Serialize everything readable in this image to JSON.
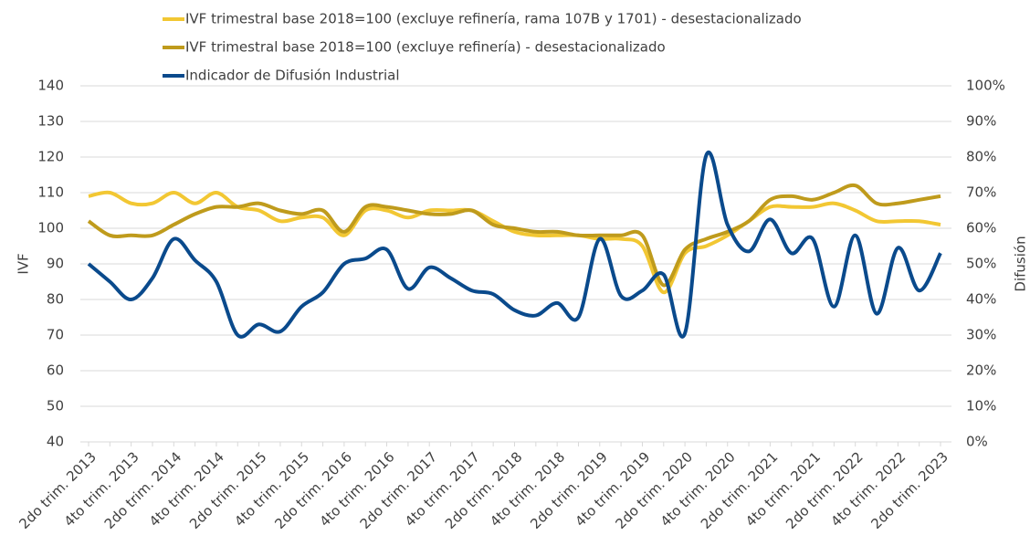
{
  "chart_data": {
    "type": "line",
    "categories": [
      "2do trim. 2013",
      null,
      "4to trim. 2013",
      null,
      "2do trim. 2014",
      null,
      "4to trim. 2014",
      null,
      "2do trim. 2015",
      null,
      "4to trim. 2015",
      null,
      "2do trim. 2016",
      null,
      "4to trim. 2016",
      null,
      "2do trim. 2017",
      null,
      "4to trim. 2017",
      null,
      "2do trim. 2018",
      null,
      "4to trim. 2018",
      null,
      "2do trim. 2019",
      null,
      "4to trim. 2019",
      null,
      "2do trim. 2020",
      null,
      "4to trim. 2020",
      null,
      "2do trim. 2021",
      null,
      "4to trim. 2021",
      null,
      "2do trim. 2022",
      null,
      "4to trim. 2022",
      null,
      "2do trim. 2023"
    ],
    "series": [
      {
        "name": "IVF trimestral base 2018=100 (excluye refinería, rama 107B y 1701) - desestacionalizado",
        "color": "#f2c733",
        "values": [
          109,
          110,
          107,
          107,
          110,
          107,
          110,
          106,
          105,
          102,
          103,
          103,
          98,
          105,
          105,
          103,
          105,
          105,
          105,
          102,
          99,
          98,
          98,
          98,
          97,
          97,
          95,
          82,
          93,
          95,
          98,
          102,
          106,
          106,
          106,
          107,
          105,
          102,
          102,
          102,
          101
        ]
      },
      {
        "name": "IVF trimestral base 2018=100 (excluye refinería) - desestacionalizado",
        "color": "#bf9b1c",
        "values": [
          102,
          98,
          98,
          98,
          101,
          104,
          106,
          106,
          107,
          105,
          104,
          105,
          99,
          106,
          106,
          105,
          104,
          104,
          105,
          101,
          100,
          99,
          99,
          98,
          98,
          98,
          98,
          84,
          94,
          97,
          99,
          102,
          108,
          109,
          108,
          110,
          112,
          107,
          107,
          108,
          109
        ]
      },
      {
        "name": "Indicador de Difusión Industrial",
        "color": "#0a4a8c",
        "axis": "y2",
        "values": [
          50,
          45,
          40,
          46,
          57,
          51,
          45,
          30,
          33,
          31,
          38,
          42,
          50,
          51.5,
          54,
          43,
          49,
          46,
          42.5,
          41.5,
          37,
          35.5,
          39,
          35,
          57,
          41,
          42.5,
          47,
          30.5,
          80.5,
          61,
          53.5,
          62.5,
          53,
          57,
          38,
          58,
          36,
          54.5,
          42.5,
          53
        ]
      }
    ],
    "ylabel": "IVF",
    "y2label": "Difusión",
    "ylim": [
      40,
      140
    ],
    "yticks": [
      40,
      50,
      60,
      70,
      80,
      90,
      100,
      110,
      120,
      130,
      140
    ],
    "y2lim": [
      0,
      100
    ],
    "y2ticks": [
      {
        "value": 0,
        "label": "0%"
      },
      {
        "value": 10,
        "label": "10%"
      },
      {
        "value": 20,
        "label": "20%"
      },
      {
        "value": 30,
        "label": "30%"
      },
      {
        "value": 40,
        "label": "40%"
      },
      {
        "value": 50,
        "label": "50%"
      },
      {
        "value": 60,
        "label": "60%"
      },
      {
        "value": 70,
        "label": "70%"
      },
      {
        "value": 80,
        "label": "80%"
      },
      {
        "value": 90,
        "label": "90%"
      },
      {
        "value": 100,
        "label": "100%"
      }
    ],
    "grid": true,
    "legend": "top"
  }
}
